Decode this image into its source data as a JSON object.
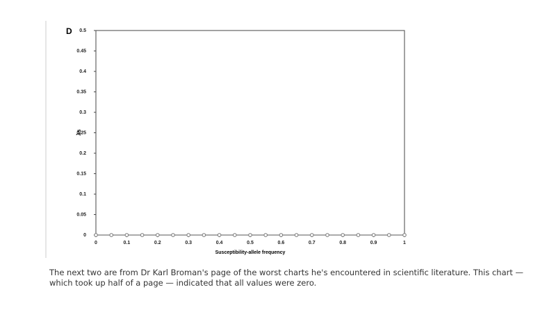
{
  "chart_data": {
    "type": "line",
    "panel_label": "D",
    "x_label": "Susceptibility-allele frequency",
    "y_label": "λs",
    "x": [
      0,
      0.05,
      0.1,
      0.15,
      0.2,
      0.25,
      0.3,
      0.35,
      0.4,
      0.45,
      0.5,
      0.55,
      0.6,
      0.65,
      0.7,
      0.75,
      0.8,
      0.85,
      0.9,
      0.95,
      1
    ],
    "series": [
      {
        "color": "#777777",
        "values": [
          0,
          0,
          0,
          0,
          0,
          0,
          0,
          0,
          0,
          0,
          0,
          0,
          0,
          0,
          0,
          0,
          0,
          0,
          0,
          0,
          0
        ]
      }
    ],
    "xlim": [
      0,
      1
    ],
    "xticks": [
      0,
      0.1,
      0.2,
      0.3,
      0.4,
      0.5,
      0.6,
      0.7,
      0.8,
      0.9,
      1
    ],
    "ylim": [
      0,
      0.5
    ],
    "yticks": [
      0,
      0.05,
      0.1,
      0.15,
      0.2,
      0.25,
      0.3,
      0.35,
      0.4,
      0.45,
      0.5
    ]
  },
  "caption": {
    "lines": [
      "The next two are from Dr Karl Broman's page of the worst charts he's encountered in scientific literature. This chart —",
      "which took up half of a page — indicated that all values were zero."
    ]
  }
}
